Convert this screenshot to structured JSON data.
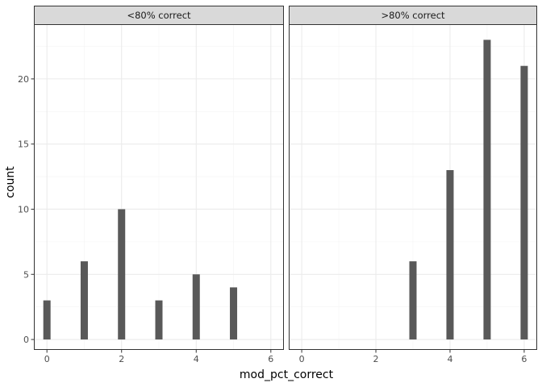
{
  "chart_data": {
    "type": "bar",
    "title": "",
    "xlabel": "mod_pct_correct",
    "ylabel": "count",
    "xlim": [
      -0.35,
      6.35
    ],
    "ylim": [
      -0.8,
      24.2
    ],
    "x_ticks": [
      "0",
      "2",
      "4",
      "6"
    ],
    "x_tick_values": [
      0,
      2,
      4,
      6
    ],
    "y_ticks": [
      "0",
      "5",
      "10",
      "15",
      "20"
    ],
    "y_tick_values": [
      0,
      5,
      10,
      15,
      20
    ],
    "grid": true,
    "theme": "bw",
    "colors": {
      "bar": "#595959",
      "panel_border": "#333333",
      "strip_fill": "#d9d9d9",
      "grid_major": "#ebebeb",
      "grid_minor": "#f4f4f4"
    },
    "panels": [
      {
        "strip_label": "<80% correct",
        "x": [
          0,
          1,
          2,
          3,
          4,
          5
        ],
        "values": [
          3,
          6,
          10,
          3,
          5,
          4
        ]
      },
      {
        "strip_label": ">80% correct",
        "x": [
          3,
          4,
          5,
          6
        ],
        "values": [
          6,
          13,
          23,
          21
        ]
      }
    ]
  }
}
